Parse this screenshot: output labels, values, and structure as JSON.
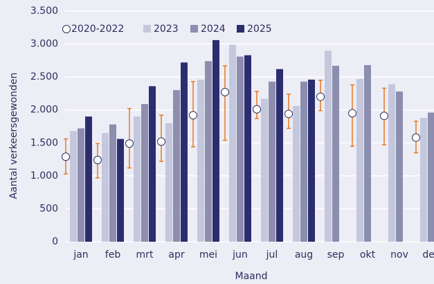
{
  "chart_data": {
    "type": "bar",
    "xlabel": "Maand",
    "ylabel": "Aantal verkeersgewonden",
    "categories": [
      "jan",
      "feb",
      "mrt",
      "apr",
      "mei",
      "jun",
      "jul",
      "aug",
      "sep",
      "okt",
      "nov",
      "dec"
    ],
    "ylim": [
      0,
      3500
    ],
    "yticks": [
      0,
      500,
      {
        "value": 1000,
        "label": "1.000"
      },
      {
        "value": 1500,
        "label": "1.500"
      },
      {
        "value": 2000,
        "label": "2.000"
      },
      {
        "value": 2500,
        "label": "2.500"
      },
      {
        "value": 3000,
        "label": "3.000"
      },
      {
        "value": 3500,
        "label": "3.500"
      }
    ],
    "grid": true,
    "legend": "top-left",
    "range_series": {
      "name": "2020-2022",
      "color": "#ffffff",
      "error_color": "#e87722",
      "values": [
        1290,
        1240,
        1490,
        1520,
        1920,
        2270,
        2010,
        1940,
        2200,
        1950,
        1910,
        1580
      ],
      "low": [
        1030,
        970,
        1120,
        1220,
        1440,
        1540,
        1870,
        1720,
        1990,
        1450,
        1470,
        1350
      ],
      "high": [
        1560,
        1490,
        2020,
        1920,
        2430,
        2670,
        2280,
        2240,
        2450,
        2380,
        2330,
        1830
      ]
    },
    "series": [
      {
        "name": "2023",
        "color": "#c5c7dc",
        "values": [
          1680,
          1650,
          1900,
          1800,
          2460,
          2990,
          2170,
          2060,
          2900,
          2470,
          2390,
          1880
        ]
      },
      {
        "name": "2024",
        "color": "#8b8eae",
        "values": [
          1720,
          1780,
          2090,
          2300,
          2740,
          2810,
          2430,
          2430,
          2670,
          2680,
          2280,
          1960
        ]
      },
      {
        "name": "2025",
        "color": "#2b2d6e",
        "values": [
          1900,
          1560,
          2360,
          2720,
          3060,
          2830,
          2620,
          2460,
          null,
          null,
          null,
          null
        ]
      }
    ]
  }
}
